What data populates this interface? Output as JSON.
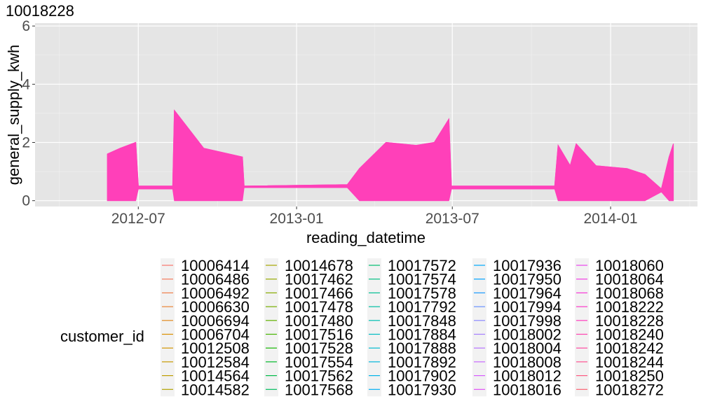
{
  "chart_data": {
    "type": "line",
    "title": "10018228",
    "xlabel": "reading_datetime",
    "ylabel": "general_supply_kwh",
    "ylim": [
      -0.2,
      6.1
    ],
    "yticks": [
      0,
      2,
      4,
      6
    ],
    "xlim": [
      "2012-03-03",
      "2014-04-12"
    ],
    "xticks": [
      {
        "date": "2012-07-01",
        "label": "2012-07"
      },
      {
        "date": "2013-01-01",
        "label": "2013-01"
      },
      {
        "date": "2013-07-01",
        "label": "2013-07"
      },
      {
        "date": "2014-01-01",
        "label": "2014-01"
      }
    ],
    "grid": true,
    "background": "#e5e5e5",
    "series": [
      {
        "name": "10018228",
        "color": "#ff40b9",
        "x": [
          "2012-05-26",
          "2012-06-10",
          "2012-06-28",
          "2012-07-01",
          "2012-08-10",
          "2012-08-12",
          "2012-09-15",
          "2012-10-30",
          "2012-11-01",
          "2013-03-01",
          "2013-03-15",
          "2013-04-15",
          "2013-05-20",
          "2013-06-10",
          "2013-06-27",
          "2013-06-30",
          "2013-07-15",
          "2013-10-28",
          "2013-11-01",
          "2013-11-15",
          "2013-11-22",
          "2013-12-15",
          "2014-01-20",
          "2014-02-10",
          "2014-03-01",
          "2014-03-10",
          "2014-03-15"
        ],
        "y": [
          1.6,
          1.8,
          2.0,
          0.5,
          0.5,
          3.1,
          1.8,
          1.5,
          0.5,
          0.55,
          1.1,
          2.0,
          1.9,
          2.0,
          2.8,
          0.5,
          0.5,
          0.5,
          1.9,
          1.2,
          1.95,
          1.2,
          1.1,
          0.9,
          0.4,
          1.5,
          1.95
        ],
        "base": [
          0,
          0,
          0,
          0.4,
          0.4,
          0,
          0,
          0,
          0.45,
          0.45,
          0,
          0,
          0,
          0,
          0,
          0.4,
          0.4,
          0.4,
          0,
          0,
          0,
          0,
          0,
          0,
          0.3,
          0,
          0
        ]
      }
    ],
    "legend": {
      "title": "customer_id",
      "position": "bottom",
      "entries": [
        {
          "label": "10006414",
          "color": "#F8766D"
        },
        {
          "label": "10006486",
          "color": "#F47A5C"
        },
        {
          "label": "10006492",
          "color": "#EF7F4A"
        },
        {
          "label": "10006630",
          "color": "#E98537"
        },
        {
          "label": "10006694",
          "color": "#E28A1F"
        },
        {
          "label": "10006704",
          "color": "#DA8F00"
        },
        {
          "label": "10012508",
          "color": "#D19400"
        },
        {
          "label": "10012584",
          "color": "#C79900"
        },
        {
          "label": "10014564",
          "color": "#BD9D00"
        },
        {
          "label": "10014582",
          "color": "#B1A100"
        },
        {
          "label": "10014678",
          "color": "#A5A500"
        },
        {
          "label": "10017462",
          "color": "#97A900"
        },
        {
          "label": "10017466",
          "color": "#88AC00"
        },
        {
          "label": "10017478",
          "color": "#77AF00"
        },
        {
          "label": "10017480",
          "color": "#62B200"
        },
        {
          "label": "10017516",
          "color": "#47B500"
        },
        {
          "label": "10017528",
          "color": "#13B700"
        },
        {
          "label": "10017554",
          "color": "#00B929"
        },
        {
          "label": "10017562",
          "color": "#00BB48"
        },
        {
          "label": "10017568",
          "color": "#00BC5E"
        },
        {
          "label": "10017572",
          "color": "#00BD71"
        },
        {
          "label": "10017574",
          "color": "#00BE83"
        },
        {
          "label": "10017578",
          "color": "#00BF93"
        },
        {
          "label": "10017792",
          "color": "#00BFA3"
        },
        {
          "label": "10017848",
          "color": "#00BEB2"
        },
        {
          "label": "10017884",
          "color": "#00BCC1"
        },
        {
          "label": "10017888",
          "color": "#00BACF"
        },
        {
          "label": "10017892",
          "color": "#00B7DC"
        },
        {
          "label": "10017902",
          "color": "#00B4E8"
        },
        {
          "label": "10017930",
          "color": "#00AFF3"
        },
        {
          "label": "10017936",
          "color": "#00AAFD"
        },
        {
          "label": "10017950",
          "color": "#00A3FF"
        },
        {
          "label": "10017964",
          "color": "#1C9BFF"
        },
        {
          "label": "10017994",
          "color": "#6A92FF"
        },
        {
          "label": "10017998",
          "color": "#8C89FF"
        },
        {
          "label": "10018002",
          "color": "#A47FFF"
        },
        {
          "label": "10018004",
          "color": "#B774FF"
        },
        {
          "label": "10018008",
          "color": "#C868FF"
        },
        {
          "label": "10018012",
          "color": "#D65CFE"
        },
        {
          "label": "10018016",
          "color": "#E14FF6"
        },
        {
          "label": "10018060",
          "color": "#EA45ED"
        },
        {
          "label": "10018064",
          "color": "#F23DE3"
        },
        {
          "label": "10018068",
          "color": "#F839D8"
        },
        {
          "label": "10018222",
          "color": "#FC39CB"
        },
        {
          "label": "10018228",
          "color": "#FF3DBE"
        },
        {
          "label": "10018240",
          "color": "#FF43B0"
        },
        {
          "label": "10018242",
          "color": "#FF4AA1"
        },
        {
          "label": "10018244",
          "color": "#FF5292"
        },
        {
          "label": "10018250",
          "color": "#FD5A82"
        },
        {
          "label": "10018272",
          "color": "#FA6272"
        }
      ]
    }
  }
}
